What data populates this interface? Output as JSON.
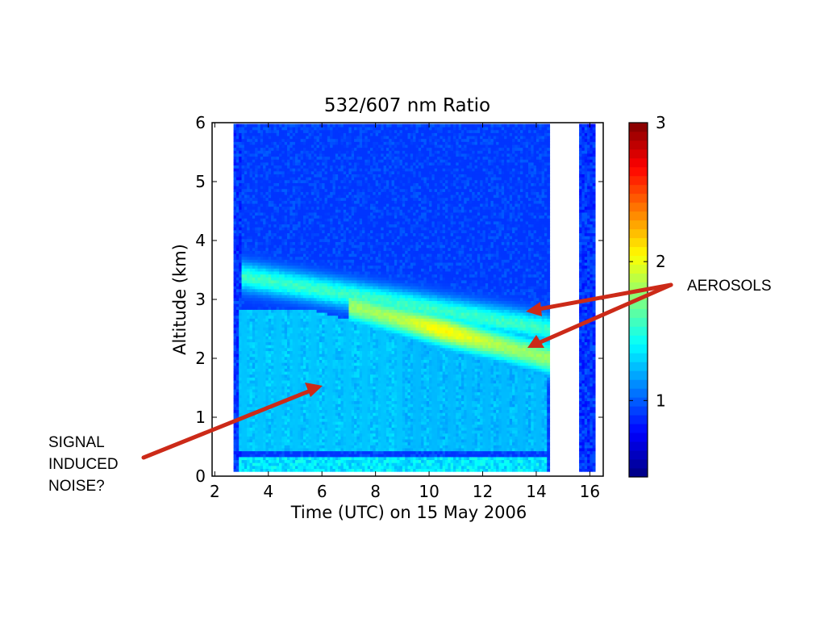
{
  "chart_data": {
    "type": "heatmap",
    "title": "532/607 nm Ratio",
    "xlabel": "Time (UTC) on 15 May 2006",
    "ylabel": "Altitude (km)",
    "xlim": [
      1.9,
      16.5
    ],
    "ylim": [
      0,
      6
    ],
    "xticks": [
      "2",
      "4",
      "6",
      "8",
      "10",
      "12",
      "14",
      "16"
    ],
    "yticks": [
      "0",
      "1",
      "2",
      "3",
      "4",
      "5",
      "6"
    ],
    "colorbar": {
      "ticks": [
        "1",
        "2",
        "3"
      ],
      "range": [
        0.45,
        3.0
      ],
      "colormap": "jet"
    },
    "data_extent": {
      "segments": [
        {
          "x": [
            2.7,
            14.5
          ]
        },
        {
          "x": [
            15.6,
            16.2
          ]
        }
      ],
      "y": [
        0.08,
        5.95
      ]
    },
    "features": [
      {
        "label": "aerosol layer (upper)",
        "x": [
          3.0,
          14.5
        ],
        "y": [
          3.4,
          2.5
        ],
        "value": 1.55
      },
      {
        "label": "aerosol layer (lower)",
        "x": [
          7.0,
          14.5
        ],
        "y": [
          2.9,
          2.0
        ],
        "value": 1.8
      },
      {
        "label": "signal induced noise region",
        "x": [
          2.9,
          14.4
        ],
        "y": [
          0.5,
          2.9
        ],
        "value": 1.2
      },
      {
        "label": "background",
        "value": 0.9
      }
    ]
  },
  "annotations": {
    "noise": {
      "text": "SIGNAL\nINDUCED\nNOISE?",
      "color": "#cc2a18"
    },
    "aerosols": {
      "text": "AEROSOLS",
      "color": "#cc2a18"
    }
  }
}
